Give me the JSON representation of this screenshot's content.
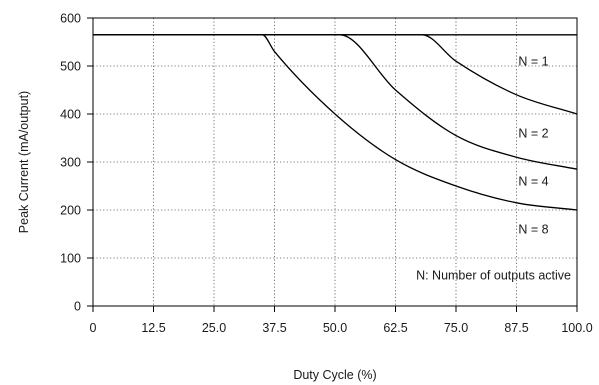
{
  "chart_data": {
    "type": "line",
    "title": "",
    "xlabel": "Duty Cycle (%)",
    "ylabel": "Peak Current (mA/output)",
    "xlim": [
      0,
      100
    ],
    "ylim": [
      0,
      600
    ],
    "xticks": [
      0,
      12.5,
      25,
      37.5,
      50,
      62.5,
      75,
      87.5,
      100
    ],
    "xtick_labels": [
      "0",
      "12.5",
      "25.0",
      "37.5",
      "50.0",
      "62.5",
      "75.0",
      "87.5",
      "100.0"
    ],
    "yticks": [
      0,
      100,
      200,
      300,
      400,
      500,
      600
    ],
    "ytick_labels": [
      "0",
      "100",
      "200",
      "300",
      "400",
      "500",
      "600"
    ],
    "grid": true,
    "legend": "none",
    "note": "N: Number of outputs active",
    "series": [
      {
        "name": "N = 1",
        "x": [
          0,
          100
        ],
        "y": [
          565,
          565
        ]
      },
      {
        "name": "N = 2",
        "x": [
          0,
          68,
          75,
          87.5,
          100
        ],
        "y": [
          565,
          565,
          510,
          440,
          400
        ]
      },
      {
        "name": "N = 4",
        "x": [
          0,
          51,
          62.5,
          75,
          87.5,
          100
        ],
        "y": [
          565,
          565,
          450,
          355,
          310,
          285
        ]
      },
      {
        "name": "N = 8",
        "x": [
          0,
          35,
          37.5,
          50,
          62.5,
          75,
          87.5,
          100
        ],
        "y": [
          565,
          565,
          530,
          400,
          305,
          250,
          215,
          200
        ]
      }
    ],
    "series_labels": [
      {
        "text": "N = 1",
        "x": 91,
        "y": 510
      },
      {
        "text": "N = 2",
        "x": 91,
        "y": 360
      },
      {
        "text": "N = 4",
        "x": 91,
        "y": 260
      },
      {
        "text": "N = 8",
        "x": 91,
        "y": 160
      }
    ],
    "note_position": {
      "x": 100,
      "y": 65
    }
  }
}
